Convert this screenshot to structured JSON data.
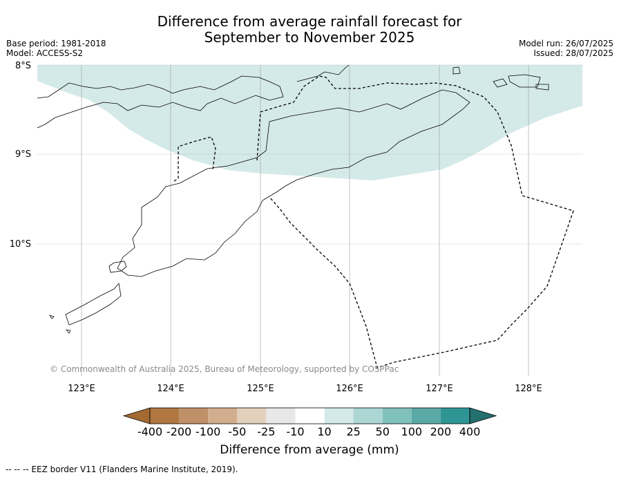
{
  "title_line1": "Difference from average rainfall forecast for",
  "title_line2": "September to November 2025",
  "base_period": "Base period: 1981-2018",
  "model": "Model: ACCESS-S2",
  "model_run": "Model run: 26/07/2025",
  "issued": "Issued: 28/07/2025",
  "lat_labels": [
    "8°S",
    "9°S",
    "10°S"
  ],
  "lon_labels": [
    "123°E",
    "124°E",
    "125°E",
    "126°E",
    "127°E",
    "128°E"
  ],
  "copyright": "© Commonwealth of Australia 2025, Bureau of Meteorology, supported by COSPPac",
  "colorbar": {
    "ticks": [
      "-400",
      "-200",
      "-100",
      "-50",
      "-25",
      "-10",
      "10",
      "25",
      "50",
      "100",
      "200",
      "400"
    ],
    "colors": [
      "#a36a34",
      "#b07840",
      "#c09068",
      "#d2ae8e",
      "#e3d0bc",
      "#e8e8e8",
      "#ffffff",
      "#d4eae8",
      "#acd6d3",
      "#80c1bd",
      "#5aa9a7",
      "#2f9594",
      "#23706f"
    ],
    "label": "Difference from average (mm)"
  },
  "legend_footer": "--  --  -- EEZ border V11 (Flanders Marine Institute, 2019).",
  "colors": {
    "positive_fill": "#d4eae8"
  }
}
